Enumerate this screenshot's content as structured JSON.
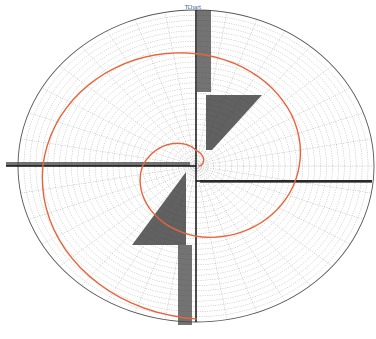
{
  "chart_data": {
    "type": "polar",
    "title": "TChart",
    "grid": true,
    "frame": "ellipse",
    "radial_rings": 30,
    "angular_step_deg": 10,
    "colors": {
      "frame": "#555555",
      "grid": "#9a9a9a",
      "axis": "#111111",
      "spiral": "#e8643a",
      "title": "#3355aa"
    },
    "series": [
      {
        "type": "spiral",
        "points": [
          {
            "theta_deg": 0,
            "r": 0.02
          },
          {
            "theta_deg": 90,
            "r": 0.1
          },
          {
            "theta_deg": 180,
            "r": 0.3
          },
          {
            "theta_deg": 270,
            "r": 0.45
          },
          {
            "theta_deg": 360,
            "r": 0.58
          },
          {
            "theta_deg": 450,
            "r": 0.72
          },
          {
            "theta_deg": 540,
            "r": 0.86
          },
          {
            "theta_deg": 630,
            "r": 0.98
          }
        ]
      }
    ]
  }
}
